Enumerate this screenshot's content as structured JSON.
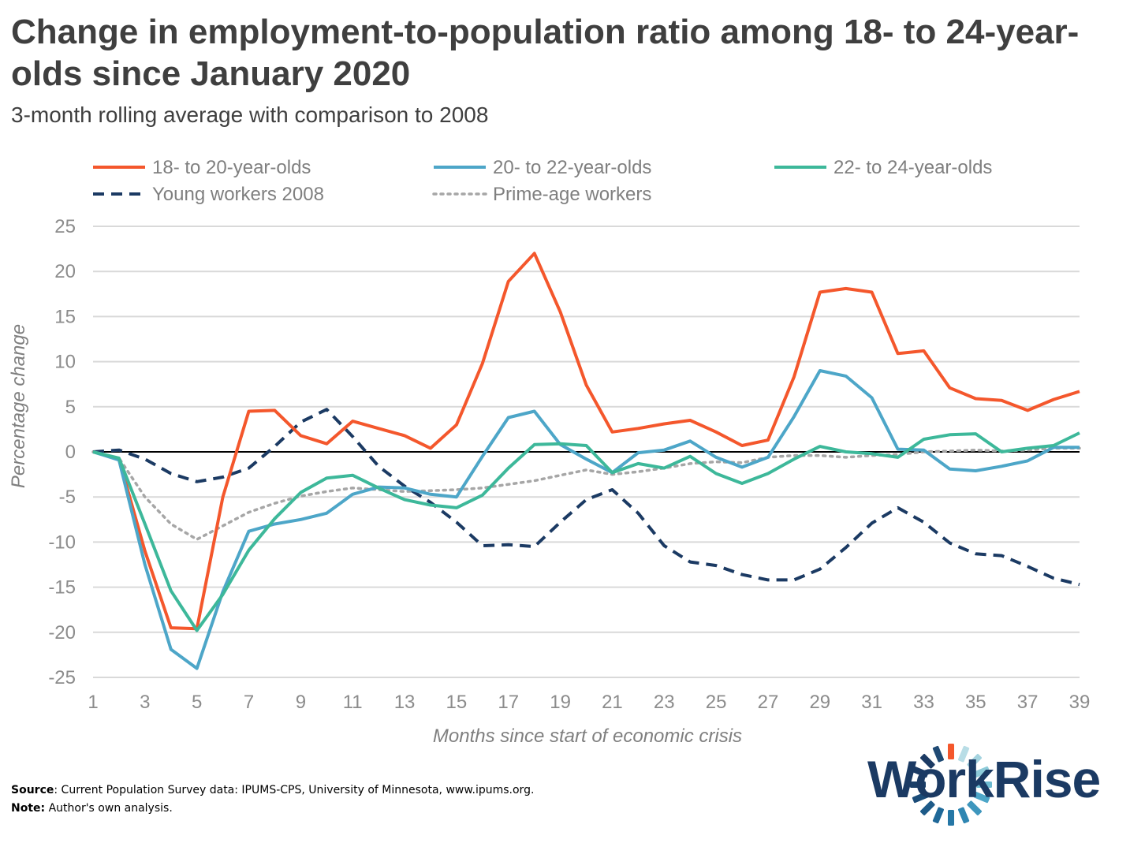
{
  "chart_data": {
    "type": "line",
    "title": "Change in employment-to-population ratio among 18- to 24-year-olds since January 2020",
    "subtitle": "3-month rolling average with comparison to 2008",
    "xlabel": "Months since start of economic crisis",
    "ylabel": "Percentage change",
    "ylim": [
      -25,
      25
    ],
    "xlim": [
      1,
      39
    ],
    "yticks": [
      25,
      20,
      15,
      10,
      5,
      0,
      -5,
      -10,
      -15,
      -20,
      -25
    ],
    "yticks_labels": [
      "25",
      "20",
      "15",
      "10",
      "5",
      "0",
      "-5",
      "-10",
      "-15",
      "-20",
      "-25"
    ],
    "xticks": [
      1,
      3,
      5,
      7,
      9,
      11,
      13,
      15,
      17,
      19,
      21,
      23,
      25,
      27,
      29,
      31,
      33,
      35,
      37,
      39
    ],
    "xticks_labels": [
      "1",
      "3",
      "5",
      "7",
      "9",
      "11",
      "13",
      "15",
      "17",
      "19",
      "21",
      "23",
      "25",
      "27",
      "29",
      "31",
      "33",
      "35",
      "37",
      "39"
    ],
    "grid": true,
    "legend_position": "top",
    "x": [
      1,
      2,
      3,
      4,
      5,
      6,
      7,
      8,
      9,
      10,
      11,
      12,
      13,
      14,
      15,
      16,
      17,
      18,
      19,
      20,
      21,
      22,
      23,
      24,
      25,
      26,
      27,
      28,
      29,
      30,
      31,
      32,
      33,
      34,
      35,
      36,
      37,
      38,
      39
    ],
    "series": [
      {
        "name": "18- to 20-year-olds",
        "color": "#f4572c",
        "style": "solid",
        "values": [
          0,
          -0.8,
          -11,
          -19.5,
          -19.6,
          -5,
          4.5,
          4.6,
          1.8,
          0.9,
          3.4,
          2.6,
          1.8,
          0.4,
          3,
          9.8,
          18.9,
          22,
          15.5,
          7.4,
          2.2,
          2.6,
          3.1,
          3.5,
          2.2,
          0.7,
          1.3,
          8.3,
          17.7,
          18.1,
          17.7,
          10.9,
          11.2,
          7.1,
          5.9,
          5.7,
          4.6,
          5.8,
          6.7
        ]
      },
      {
        "name": "20- to 22-year-olds",
        "color": "#4da6c8",
        "style": "solid",
        "values": [
          0,
          -0.9,
          -12.5,
          -21.9,
          -24,
          -15.5,
          -8.8,
          -8,
          -7.5,
          -6.8,
          -4.7,
          -3.9,
          -4,
          -4.7,
          -5,
          -0.5,
          3.8,
          4.5,
          0.8,
          -0.8,
          -2.3,
          -0.1,
          0.2,
          1.2,
          -0.6,
          -1.7,
          -0.6,
          3.9,
          9,
          8.4,
          6,
          0.3,
          0.2,
          -1.9,
          -2.1,
          -1.6,
          -1,
          0.5,
          0.5
        ]
      },
      {
        "name": "22- to 24-year-olds",
        "color": "#3db89a",
        "style": "solid",
        "values": [
          0,
          -0.7,
          -8,
          -15.4,
          -19.8,
          -15.8,
          -10.9,
          -7.4,
          -4.5,
          -2.9,
          -2.6,
          -4,
          -5.3,
          -5.9,
          -6.2,
          -4.8,
          -1.8,
          0.8,
          0.9,
          0.7,
          -2.3,
          -1.3,
          -1.8,
          -0.5,
          -2.4,
          -3.5,
          -2.4,
          -0.8,
          0.6,
          0,
          -0.2,
          -0.6,
          1.4,
          1.9,
          2,
          0,
          0.4,
          0.7,
          2.1
        ]
      },
      {
        "name": "Young workers 2008",
        "color": "#1b3a63",
        "style": "dashed",
        "values": [
          0,
          0.2,
          -0.8,
          -2.4,
          -3.3,
          -2.8,
          -1.8,
          0.6,
          3.3,
          4.7,
          1.7,
          -1.6,
          -3.8,
          -5.6,
          -7.8,
          -10.4,
          -10.3,
          -10.5,
          -7.8,
          -5.3,
          -4.2,
          -6.8,
          -10.4,
          -12.2,
          -12.6,
          -13.6,
          -14.2,
          -14.2,
          -13,
          -10.6,
          -7.9,
          -6.2,
          -7.8,
          -10.1,
          -11.3,
          -11.5,
          -12.7,
          -14,
          -14.7
        ]
      },
      {
        "name": "Prime-age workers",
        "color": "#a6a6a6",
        "style": "dotted",
        "values": [
          0,
          -0.7,
          -5,
          -8,
          -9.7,
          -8.2,
          -6.7,
          -5.7,
          -4.9,
          -4.4,
          -4,
          -4.2,
          -4.4,
          -4.3,
          -4.2,
          -4,
          -3.6,
          -3.2,
          -2.6,
          -2,
          -2.5,
          -2.2,
          -1.8,
          -1.3,
          -1.1,
          -1.2,
          -0.6,
          -0.4,
          -0.4,
          -0.6,
          -0.4,
          -0.3,
          0,
          0.1,
          0.2,
          0.1,
          0.2,
          0.4,
          0.4
        ]
      }
    ]
  },
  "source_label": "Source",
  "source_text": ": Current Population Survey data: IPUMS-CPS, University of Minnesota, www.ipums.org.",
  "note_label": "Note:",
  "note_text": " Author's own analysis.",
  "logo_text": "WorkRise"
}
